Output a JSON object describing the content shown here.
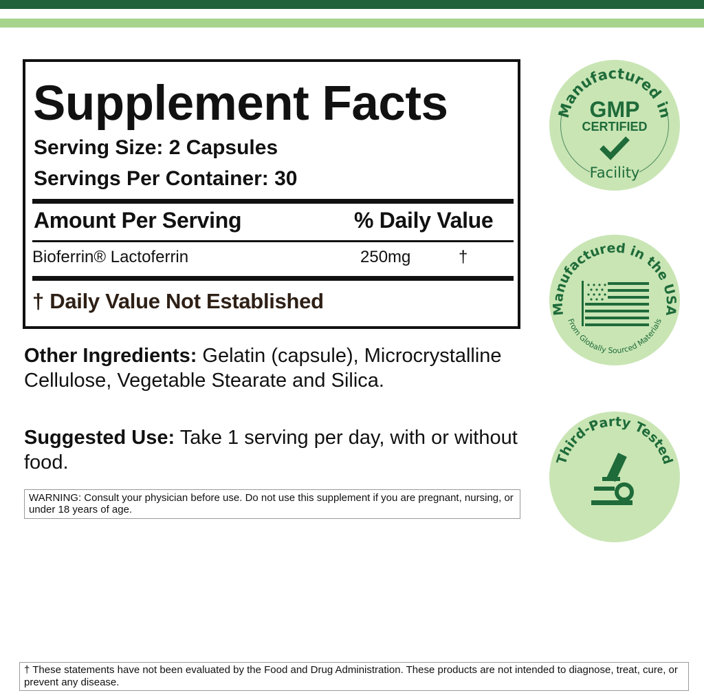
{
  "colors": {
    "dark_green": "#22623b",
    "light_green": "#a6d48c",
    "badge_fill": "#c9e5b4",
    "badge_ink": "#1f6b3a"
  },
  "label": {
    "title": "Supplement Facts",
    "serving_size": "Serving Size: 2 Capsules",
    "servings_per_container": "Servings Per Container:  30",
    "amount_header": "Amount Per Serving",
    "dv_header": "% Daily Value",
    "ingredient": {
      "name": "Bioferrin® Lactoferrin",
      "amount": "250mg",
      "dv": "†"
    },
    "dv_note": "† Daily Value Not Established"
  },
  "other_ingredients": {
    "label": "Other Ingredients:",
    "text": " Gelatin (capsule), Microcrystalline Cellulose, Vegetable Stearate and Silica."
  },
  "suggested_use": {
    "label": "Suggested Use:",
    "text": " Take 1 serving per day, with or without food."
  },
  "warning": "WARNING: Consult your physician before use. Do not use this supplement if you are pregnant, nursing, or under 18 years of age.",
  "disclaimer": "† These statements have not been evaluated by the Food and Drug Administration. These products are not intended to diagnose, treat, cure, or prevent any disease.",
  "badges": {
    "gmp": {
      "top": "Manufactured in",
      "main": "GMP",
      "sub": "CERTIFIED",
      "bottom": "Facility",
      "icon": "checkmark-icon"
    },
    "usa": {
      "top": "Manufactured in the USA",
      "bottom": "From Globally Sourced Materials",
      "icon": "us-flag-icon"
    },
    "tested": {
      "top": "Third-Party Tested",
      "icon": "microscope-icon"
    }
  }
}
